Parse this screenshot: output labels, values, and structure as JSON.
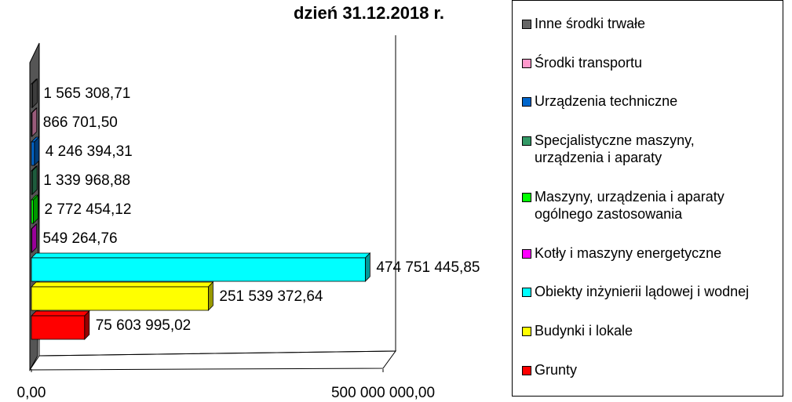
{
  "chart_data": {
    "type": "bar3d",
    "orientation": "horizontal",
    "title": "dzień 31.12.2018 r.",
    "categories": [
      "Grunty",
      "Budynki i lokale",
      "Obiekty inżynierii lądowej i wodnej",
      "Kotły i maszyny energetyczne",
      "Maszyny, urządzenia i aparaty ogólnego zastosowania",
      "Specjalistyczne maszyny, urządzenia i aparaty",
      "Urządzenia techniczne",
      "Środki transportu",
      "Inne środki trwałe"
    ],
    "values": [
      75603995.02,
      251539372.64,
      474751445.85,
      549264.76,
      2772454.12,
      1339968.88,
      4246394.31,
      866701.5,
      1565308.71
    ],
    "value_labels": [
      "75 603 995,02",
      "251 539 372,64",
      "474 751 445,85",
      "549 264,76",
      "2 772 454,12",
      "1 339 968,88",
      "4 246 394,31",
      "866 701,50",
      "1 565 308,71"
    ],
    "colors": [
      "#ff0000",
      "#ffff00",
      "#00ffff",
      "#ff00ff",
      "#00ff00",
      "#339966",
      "#0066cc",
      "#ff99cc",
      "#666666"
    ],
    "xlim": [
      0,
      500000000
    ],
    "xticks": [
      {
        "value": 0,
        "label": "0,00"
      },
      {
        "value": 500000000,
        "label": "500 000 000,00"
      }
    ],
    "legend": "right"
  }
}
